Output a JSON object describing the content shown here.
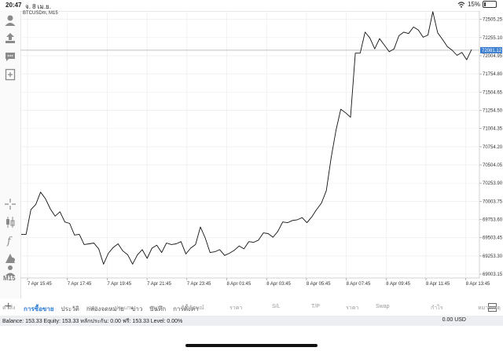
{
  "status_bar": {
    "time": "20:47",
    "date": "จ. 8 เม.ย.",
    "battery": "15%",
    "battery_level": 0.15
  },
  "chart_meta": {
    "symbol": "BTCUSDm, M15",
    "timeframe": "M15"
  },
  "chart_data": {
    "type": "line",
    "x_labels": [
      "7 Apr 15:45",
      "7 Apr 17:45",
      "7 Apr 19:45",
      "7 Apr 21:45",
      "7 Apr 23:45",
      "8 Apr 01:45",
      "8 Apr 03:45",
      "8 Apr 05:45",
      "8 Apr 07:45",
      "8 Apr 09:45",
      "8 Apr 11:45",
      "8 Apr 13:45"
    ],
    "y_ticks": [
      "72505.25",
      "72255.10",
      "72004.95",
      "71754.80",
      "71504.65",
      "71254.50",
      "71004.35",
      "70754.20",
      "70504.05",
      "70253.90",
      "70003.75",
      "69753.60",
      "69503.45",
      "69253.30",
      "69003.15"
    ],
    "ylim": [
      68950,
      72620
    ],
    "current_price": "72081.12",
    "current_value": 72081.12,
    "values": [
      69550,
      69550,
      69890,
      69960,
      70130,
      70040,
      69900,
      69800,
      69860,
      69720,
      69700,
      69540,
      69550,
      69410,
      69420,
      69430,
      69350,
      69140,
      69290,
      69370,
      69420,
      69320,
      69270,
      69140,
      69270,
      69340,
      69220,
      69360,
      69400,
      69300,
      69430,
      69410,
      69420,
      69450,
      69280,
      69360,
      69410,
      69650,
      69500,
      69300,
      69310,
      69340,
      69260,
      69290,
      69330,
      69390,
      69350,
      69450,
      69440,
      69470,
      69570,
      69560,
      69510,
      69590,
      69720,
      69710,
      69740,
      69750,
      69780,
      69710,
      69790,
      69890,
      69980,
      70150,
      70600,
      70980,
      71270,
      71220,
      71160,
      72040,
      72040,
      72330,
      72250,
      72100,
      72240,
      72150,
      72060,
      72100,
      72280,
      72330,
      72310,
      72400,
      72360,
      72260,
      72290,
      72610,
      72320,
      72230,
      72130,
      72080,
      72010,
      72050,
      71950,
      72090
    ]
  },
  "tabs": [
    {
      "label": "การซื้อขาย",
      "active": true
    },
    {
      "label": "ประวัติ",
      "active": false
    },
    {
      "label": "กล่องจดหมาย",
      "active": false
    },
    {
      "label": "ข่าว",
      "active": false
    },
    {
      "label": "บันทึก",
      "active": false
    },
    {
      "label": "การตั้งค่า",
      "active": false
    }
  ],
  "columns": [
    "คำสั่ง",
    "เวลา",
    "ประเภท",
    "ขนาด",
    "สัญลักษณ์",
    "ราคา",
    "S/L",
    "T/P",
    "ราคา",
    "Swap",
    "กำไร",
    "หมายเหตุ"
  ],
  "balance": {
    "text": "Balance: 153.33 Equity: 153.33 หลักประกัน: 0.00 ฟรี: 153.33 Level: 0.00%",
    "profit": "0.00  USD"
  },
  "colors": {
    "accent": "#2b7bd1",
    "line": "#111111",
    "price_label_bg": "#3c7fd0"
  }
}
